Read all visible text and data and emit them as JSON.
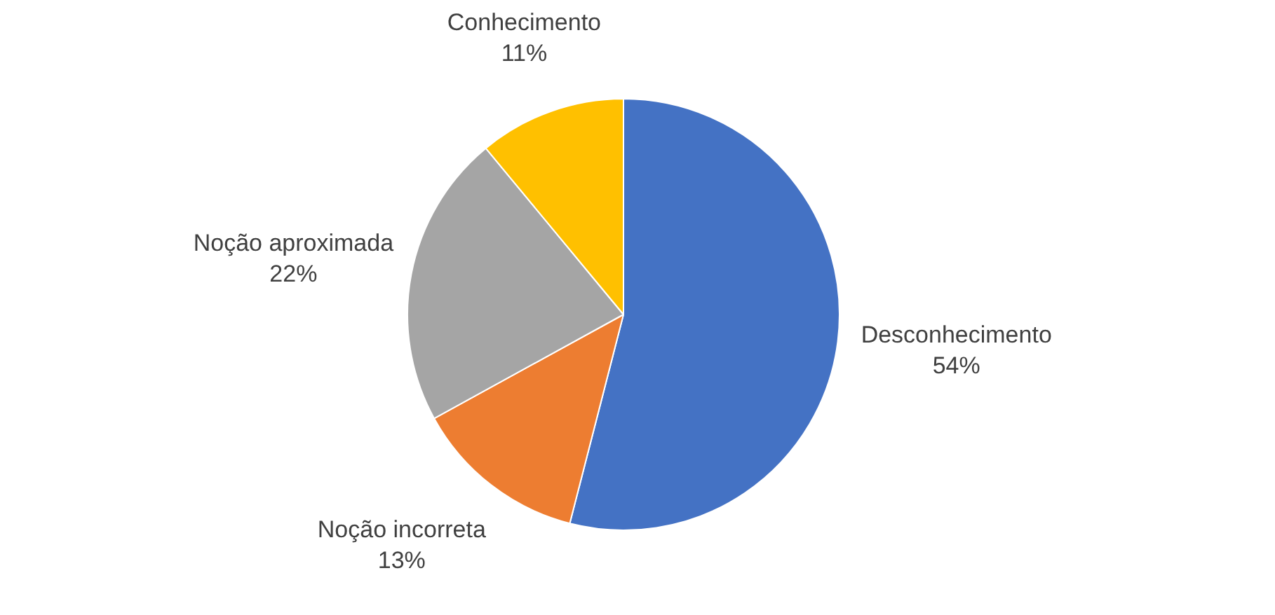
{
  "chart_data": {
    "type": "pie",
    "categories": [
      "Desconhecimento",
      "Noção incorreta",
      "Noção aproximada",
      "Conhecimento"
    ],
    "values": [
      54,
      13,
      22,
      11
    ],
    "colors": [
      "#4472c4",
      "#ed7d31",
      "#a5a5a5",
      "#ffc000"
    ],
    "value_labels": [
      "54%",
      "13%",
      "22%",
      "11%"
    ],
    "legend": false
  }
}
